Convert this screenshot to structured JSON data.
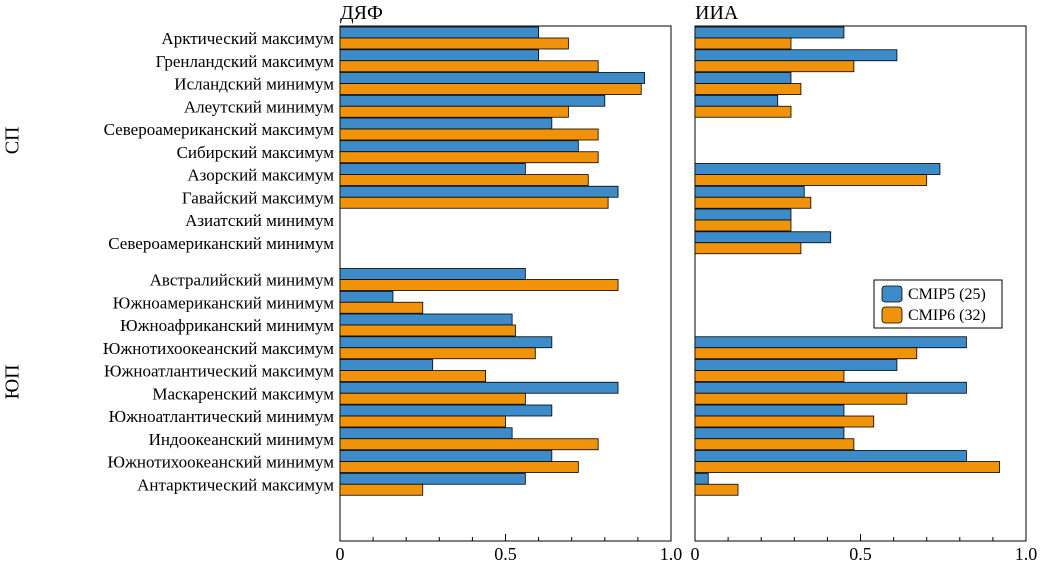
{
  "chart_data": {
    "type": "bar",
    "orientation": "horizontal",
    "categories": [
      "Арктический максимум",
      "Гренландский максимум",
      "Исландский минимум",
      "Алеутский минимум",
      "Североамериканский максимум",
      "Сибирский максимум",
      "Азорский максимум",
      "Гавайский максимум",
      "Азиатский минимум",
      "Североамериканский минимум",
      "Австралийский минимум",
      "Южноамериканский минимум",
      "Южноафриканский минимум",
      "Южнотихоокеанский максимум",
      "Южноатлантический максимум",
      "Маскаренский максимум",
      "Южноатлантический минимум",
      "Индоокеанский минимум",
      "Южнотихоокеанский минимум",
      "Антарктический максимум"
    ],
    "groups": [
      {
        "label": "СП",
        "start": 0,
        "end": 9
      },
      {
        "label": "ЮП",
        "start": 10,
        "end": 19
      }
    ],
    "panels": [
      {
        "title": "ДЯФ",
        "xlim": [
          0,
          1.0
        ],
        "xticks": [
          "0",
          "0.5",
          "1.0"
        ],
        "series": [
          {
            "name": "CMIP5 (25)",
            "values": [
              0.6,
              0.6,
              0.92,
              0.8,
              0.64,
              0.72,
              0.56,
              0.84,
              null,
              null,
              0.56,
              0.16,
              0.52,
              0.64,
              0.28,
              0.84,
              0.64,
              0.52,
              0.64,
              0.56
            ]
          },
          {
            "name": "CMIP6 (32)",
            "values": [
              0.69,
              0.78,
              0.91,
              0.69,
              0.78,
              0.78,
              0.75,
              0.81,
              null,
              null,
              0.84,
              0.25,
              0.53,
              0.59,
              0.44,
              0.56,
              0.5,
              0.78,
              0.72,
              0.25
            ]
          }
        ]
      },
      {
        "title": "ИИА",
        "xlim": [
          0,
          1.0
        ],
        "xticks": [
          "0",
          "0.5",
          "1.0"
        ],
        "series": [
          {
            "name": "CMIP5 (25)",
            "values": [
              0.45,
              0.61,
              0.29,
              0.25,
              null,
              null,
              0.74,
              0.33,
              0.29,
              0.41,
              null,
              null,
              null,
              0.82,
              0.61,
              0.82,
              0.45,
              0.45,
              0.82,
              0.04
            ]
          },
          {
            "name": "CMIP6 (32)",
            "values": [
              0.29,
              0.48,
              0.32,
              0.29,
              null,
              null,
              0.7,
              0.35,
              0.29,
              0.32,
              null,
              null,
              null,
              0.67,
              0.45,
              0.64,
              0.54,
              0.48,
              0.92,
              0.13
            ]
          }
        ]
      }
    ],
    "legend": {
      "position": "right-middle",
      "entries": [
        "CMIP5 (25)",
        "CMIP6 (32)"
      ]
    },
    "colors": {
      "CMIP5 (25)": "#3d8bc8",
      "CMIP6 (32)": "#f0920a"
    },
    "grid": false
  }
}
